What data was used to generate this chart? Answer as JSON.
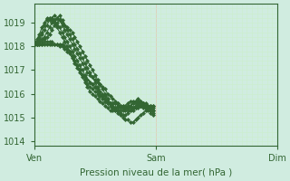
{
  "bg_color": "#d0ece0",
  "plot_bg_color": "#d0ece0",
  "grid_color_major": "#ff9999",
  "grid_color_minor": "#cceecc",
  "line_color": "#336633",
  "marker_color": "#336633",
  "axis_color": "#336633",
  "text_color": "#336633",
  "xlabel": "Pression niveau de la mer( hPa )",
  "ylim": [
    1013.8,
    1019.8
  ],
  "yticks": [
    1014,
    1015,
    1016,
    1017,
    1018,
    1019
  ],
  "xtick_labels": [
    "Ven",
    "Sam",
    "Dim"
  ],
  "xtick_positions": [
    0,
    48,
    96
  ],
  "total_points": 144,
  "series": [
    [
      1018.1,
      1018.1,
      1018.2,
      1018.2,
      1018.3,
      1018.4,
      1018.5,
      1018.7,
      1018.9,
      1019.0,
      1019.1,
      1019.0,
      1018.9,
      1018.8,
      1018.7,
      1018.6,
      1018.4,
      1018.2,
      1018.0,
      1017.8,
      1017.6,
      1017.4,
      1017.2,
      1017.0,
      1016.8,
      1016.6,
      1016.4,
      1016.2,
      1016.0,
      1015.8,
      1015.6,
      1015.4,
      1015.3,
      1015.2,
      1015.1,
      1015.0,
      1014.9,
      1014.9,
      1014.8,
      1014.8,
      1014.9,
      1015.0,
      1015.1,
      1015.2,
      1015.3,
      1015.4,
      1015.5,
      1015.5
    ],
    [
      1018.1,
      1018.1,
      1018.2,
      1018.3,
      1018.4,
      1018.6,
      1018.8,
      1019.0,
      1019.1,
      1019.2,
      1019.3,
      1019.1,
      1018.9,
      1018.7,
      1018.5,
      1018.3,
      1018.1,
      1017.9,
      1017.7,
      1017.5,
      1017.3,
      1017.1,
      1016.9,
      1016.7,
      1016.5,
      1016.3,
      1016.1,
      1016.0,
      1015.9,
      1015.8,
      1015.6,
      1015.5,
      1015.4,
      1015.3,
      1015.2,
      1015.1,
      1015.1,
      1015.2,
      1015.3,
      1015.4,
      1015.5,
      1015.6,
      1015.6,
      1015.5,
      1015.4,
      1015.3,
      1015.2,
      1015.1
    ],
    [
      1018.1,
      1018.2,
      1018.3,
      1018.5,
      1018.7,
      1018.9,
      1019.1,
      1019.2,
      1019.3,
      1019.2,
      1019.1,
      1018.9,
      1018.7,
      1018.5,
      1018.3,
      1018.1,
      1017.9,
      1017.7,
      1017.5,
      1017.3,
      1017.1,
      1016.9,
      1016.8,
      1016.7,
      1016.6,
      1016.5,
      1016.4,
      1016.3,
      1016.2,
      1016.0,
      1015.9,
      1015.8,
      1015.7,
      1015.6,
      1015.5,
      1015.5,
      1015.5,
      1015.6,
      1015.7,
      1015.7,
      1015.7,
      1015.6,
      1015.5,
      1015.4,
      1015.4,
      1015.4,
      1015.5,
      1015.5
    ],
    [
      1018.1,
      1018.2,
      1018.4,
      1018.6,
      1018.9,
      1019.1,
      1019.2,
      1019.2,
      1019.1,
      1018.9,
      1018.8,
      1018.6,
      1018.4,
      1018.2,
      1018.0,
      1017.8,
      1017.6,
      1017.4,
      1017.2,
      1017.0,
      1016.8,
      1016.6,
      1016.5,
      1016.4,
      1016.3,
      1016.2,
      1016.0,
      1015.9,
      1015.8,
      1015.7,
      1015.6,
      1015.6,
      1015.6,
      1015.6,
      1015.5,
      1015.5,
      1015.4,
      1015.4,
      1015.5,
      1015.6,
      1015.7,
      1015.8,
      1015.7,
      1015.6,
      1015.5,
      1015.4,
      1015.4,
      1015.3
    ],
    [
      1018.1,
      1018.3,
      1018.5,
      1018.8,
      1019.0,
      1019.2,
      1019.2,
      1019.1,
      1019.0,
      1018.8,
      1018.6,
      1018.4,
      1018.2,
      1018.0,
      1017.8,
      1017.6,
      1017.4,
      1017.2,
      1017.0,
      1016.8,
      1016.7,
      1016.6,
      1016.5,
      1016.4,
      1016.3,
      1016.1,
      1015.9,
      1015.8,
      1015.7,
      1015.6,
      1015.6,
      1015.6,
      1015.6,
      1015.5,
      1015.5,
      1015.4,
      1015.4,
      1015.4,
      1015.4,
      1015.4,
      1015.4,
      1015.5,
      1015.5,
      1015.6,
      1015.6,
      1015.5,
      1015.4,
      1015.3
    ],
    [
      1018.1,
      1018.1,
      1018.1,
      1018.1,
      1018.2,
      1018.2,
      1018.2,
      1018.2,
      1018.1,
      1018.1,
      1018.0,
      1018.0,
      1017.9,
      1017.8,
      1017.7,
      1017.5,
      1017.3,
      1017.1,
      1016.9,
      1016.7,
      1016.5,
      1016.3,
      1016.1,
      1016.0,
      1015.9,
      1015.8,
      1015.7,
      1015.6,
      1015.5,
      1015.4,
      1015.3,
      1015.3,
      1015.3,
      1015.3,
      1015.3,
      1015.3,
      1015.3,
      1015.3,
      1015.3,
      1015.3,
      1015.4,
      1015.4,
      1015.5,
      1015.5,
      1015.5,
      1015.5,
      1015.5,
      1015.4
    ],
    [
      1018.1,
      1018.1,
      1018.1,
      1018.1,
      1018.1,
      1018.1,
      1018.1,
      1018.1,
      1018.1,
      1018.1,
      1018.1,
      1018.1,
      1018.0,
      1017.9,
      1017.8,
      1017.6,
      1017.4,
      1017.2,
      1017.0,
      1016.8,
      1016.6,
      1016.4,
      1016.3,
      1016.2,
      1016.1,
      1016.0,
      1015.9,
      1015.8,
      1015.7,
      1015.6,
      1015.5,
      1015.4,
      1015.4,
      1015.4,
      1015.4,
      1015.4,
      1015.4,
      1015.5,
      1015.5,
      1015.6,
      1015.6,
      1015.7,
      1015.7,
      1015.6,
      1015.5,
      1015.4,
      1015.3,
      1015.2
    ]
  ]
}
